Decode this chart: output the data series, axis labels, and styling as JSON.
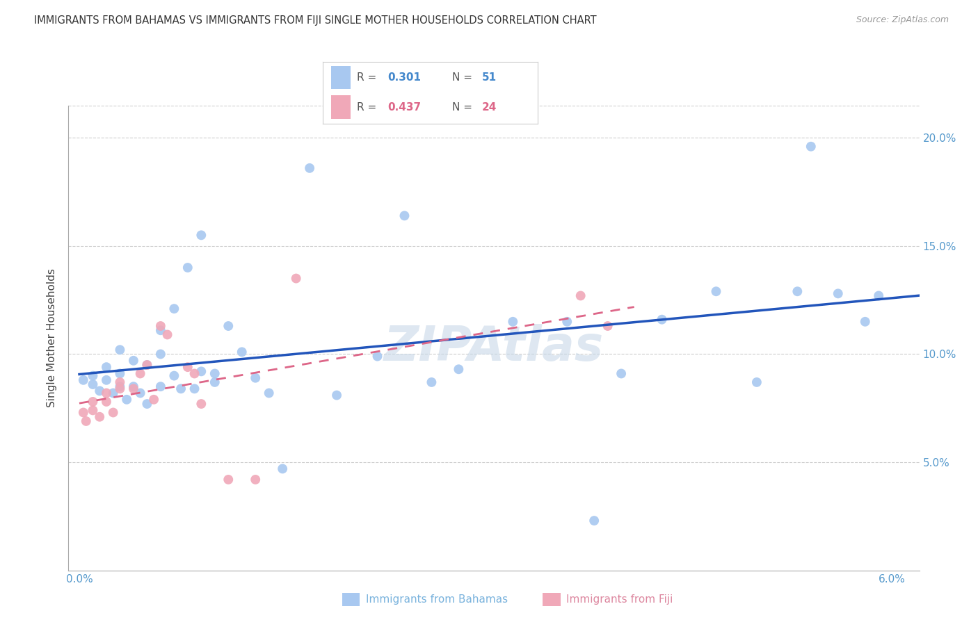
{
  "title": "IMMIGRANTS FROM BAHAMAS VS IMMIGRANTS FROM FIJI SINGLE MOTHER HOUSEHOLDS CORRELATION CHART",
  "source": "Source: ZipAtlas.com",
  "ylabel_label": "Single Mother Households",
  "legend_bahamas_label": "Immigrants from Bahamas",
  "legend_fiji_label": "Immigrants from Fiji",
  "xlim": [
    -0.0008,
    0.062
  ],
  "ylim": [
    0.0,
    0.215
  ],
  "x_ticks": [
    0.0,
    0.01,
    0.02,
    0.03,
    0.04,
    0.05,
    0.06
  ],
  "x_tick_labels": [
    "0.0%",
    "",
    "",
    "",
    "",
    "",
    "6.0%"
  ],
  "y_ticks": [
    0.05,
    0.1,
    0.15,
    0.2
  ],
  "y_tick_labels": [
    "5.0%",
    "10.0%",
    "15.0%",
    "20.0%"
  ],
  "watermark": "ZIPAtlas",
  "color_bahamas": "#a8c8f0",
  "color_fiji": "#f0a8b8",
  "line_color_bahamas": "#2255bb",
  "line_color_fiji": "#dd6688",
  "bahamas_x": [
    0.0003,
    0.001,
    0.001,
    0.0015,
    0.002,
    0.002,
    0.0025,
    0.003,
    0.003,
    0.003,
    0.0035,
    0.004,
    0.004,
    0.0045,
    0.005,
    0.005,
    0.006,
    0.006,
    0.006,
    0.007,
    0.007,
    0.0075,
    0.008,
    0.0085,
    0.009,
    0.009,
    0.01,
    0.01,
    0.011,
    0.012,
    0.013,
    0.014,
    0.015,
    0.017,
    0.019,
    0.022,
    0.024,
    0.026,
    0.028,
    0.032,
    0.036,
    0.038,
    0.04,
    0.043,
    0.047,
    0.05,
    0.053,
    0.054,
    0.056,
    0.058,
    0.059
  ],
  "bahamas_y": [
    0.088,
    0.09,
    0.086,
    0.083,
    0.094,
    0.088,
    0.082,
    0.102,
    0.091,
    0.085,
    0.079,
    0.097,
    0.085,
    0.082,
    0.095,
    0.077,
    0.111,
    0.1,
    0.085,
    0.121,
    0.09,
    0.084,
    0.14,
    0.084,
    0.155,
    0.092,
    0.091,
    0.087,
    0.113,
    0.101,
    0.089,
    0.082,
    0.047,
    0.186,
    0.081,
    0.099,
    0.164,
    0.087,
    0.093,
    0.115,
    0.115,
    0.023,
    0.091,
    0.116,
    0.129,
    0.087,
    0.129,
    0.196,
    0.128,
    0.115,
    0.127
  ],
  "fiji_x": [
    0.0003,
    0.0005,
    0.001,
    0.001,
    0.0015,
    0.002,
    0.002,
    0.0025,
    0.003,
    0.003,
    0.004,
    0.0045,
    0.005,
    0.0055,
    0.006,
    0.0065,
    0.008,
    0.0085,
    0.009,
    0.011,
    0.013,
    0.016,
    0.037,
    0.039
  ],
  "fiji_y": [
    0.073,
    0.069,
    0.078,
    0.074,
    0.071,
    0.082,
    0.078,
    0.073,
    0.087,
    0.084,
    0.084,
    0.091,
    0.095,
    0.079,
    0.113,
    0.109,
    0.094,
    0.091,
    0.077,
    0.042,
    0.042,
    0.135,
    0.127,
    0.113
  ]
}
